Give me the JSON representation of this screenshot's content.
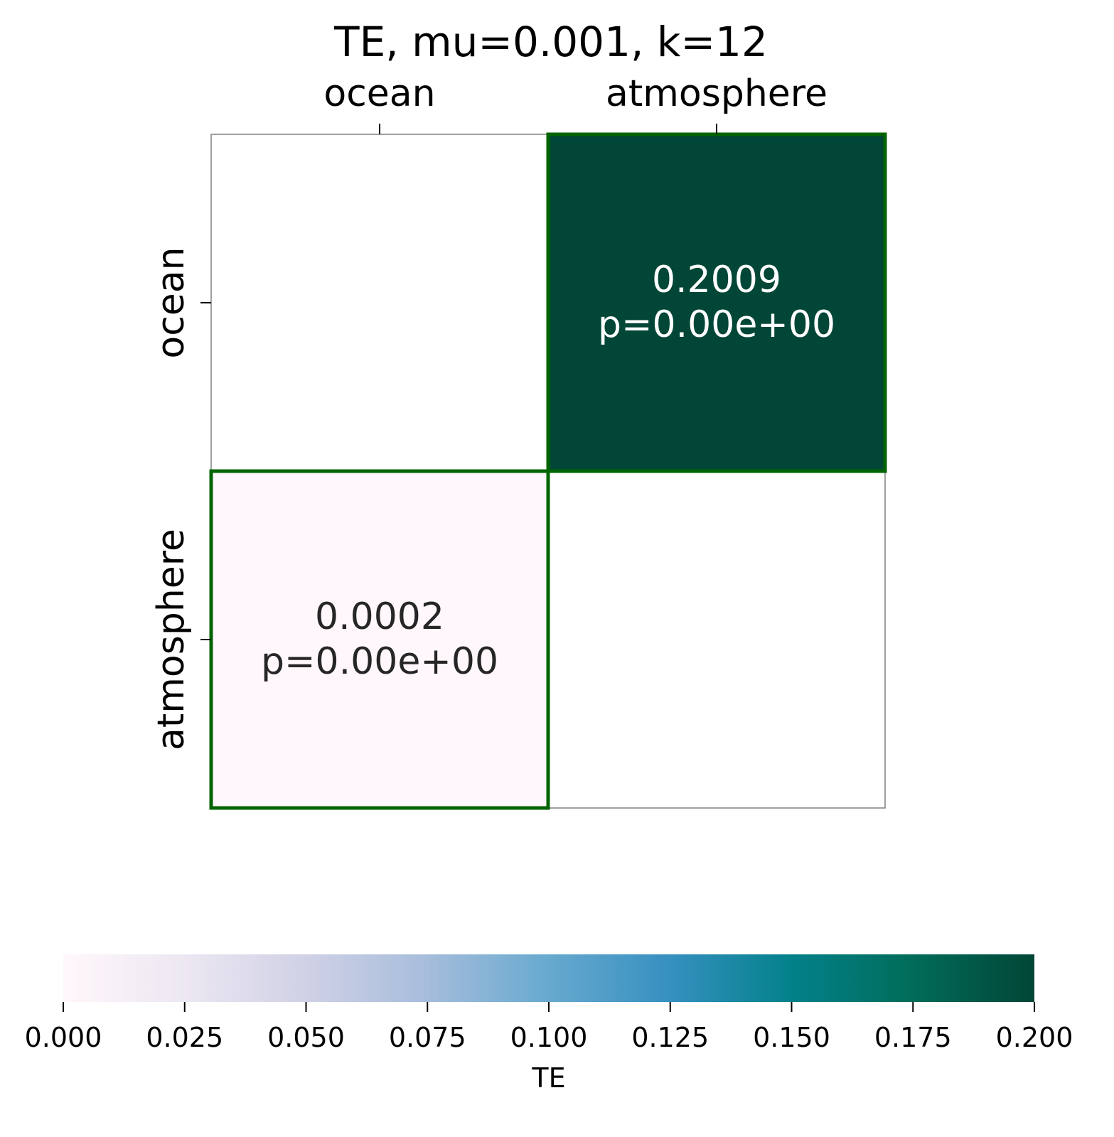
{
  "chart_data": {
    "type": "heatmap",
    "title": "TE, mu=0.001, k=12",
    "x_categories": [
      "ocean",
      "atmosphere"
    ],
    "y_categories": [
      "ocean",
      "atmosphere"
    ],
    "cells": [
      {
        "row": 0,
        "col": 1,
        "value": 0.2009,
        "value_label": "0.2009",
        "p_label": "p=0.00e+00",
        "highlighted": true
      },
      {
        "row": 1,
        "col": 0,
        "value": 0.0002,
        "value_label": "0.0002",
        "p_label": "p=0.00e+00",
        "highlighted": true
      }
    ],
    "missing_cells": [
      {
        "row": 0,
        "col": 0
      },
      {
        "row": 1,
        "col": 1
      }
    ],
    "colorbar": {
      "label": "TE",
      "range": [
        0.0,
        0.2
      ],
      "ticks": [
        0.0,
        0.025,
        0.05,
        0.075,
        0.1,
        0.125,
        0.15,
        0.175,
        0.2
      ],
      "tick_labels": [
        "0.000",
        "0.025",
        "0.050",
        "0.075",
        "0.100",
        "0.125",
        "0.150",
        "0.175",
        "0.200"
      ],
      "orientation": "horizontal",
      "placement": "bottom",
      "colormap": "PuBuGn",
      "colors": [
        "#fff7fb",
        "#ece7f2",
        "#d0d1e6",
        "#a6bddb",
        "#67a9cf",
        "#3690c0",
        "#02818a",
        "#016c59",
        "#014636"
      ]
    },
    "highlight_color": "#006400",
    "annotation_colors": {
      "dark_text": "#262626",
      "light_text": "#ffffff"
    }
  }
}
